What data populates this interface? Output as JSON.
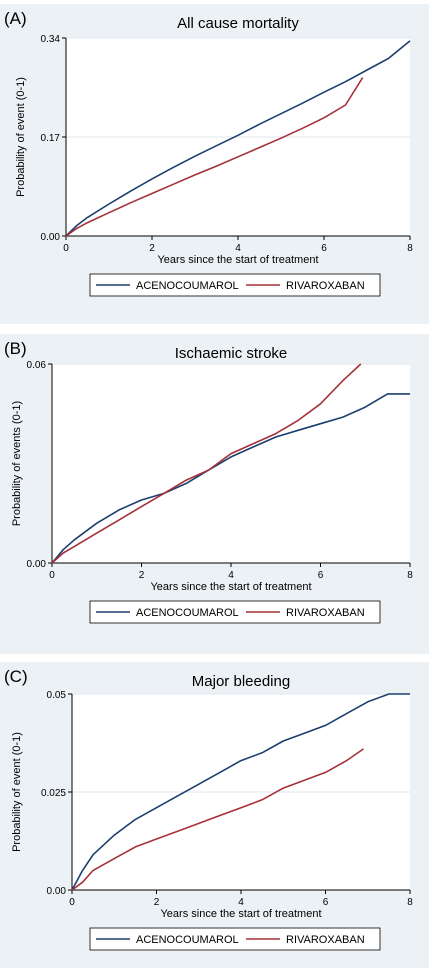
{
  "colors": {
    "panel_background": "#ecf1f5",
    "plot_background": "#ffffff",
    "grid": "#dfe7ed",
    "acenocoumarol": "#1b3f6f",
    "rivaroxaban": "#a6303a"
  },
  "chart_data": [
    {
      "type": "line",
      "panel_label": "(A)",
      "title": "All cause mortality",
      "xlabel": "Years since the start of treatment",
      "ylabel": "Probability of event (0-1)",
      "xlim": [
        0,
        8
      ],
      "ylim": [
        0,
        0.34
      ],
      "xticks": [
        "0",
        "2",
        "4",
        "6",
        "8"
      ],
      "yticks": [
        "0.00",
        "0.17",
        "0.34"
      ],
      "ytick_values": [
        0,
        0.17,
        0.34
      ],
      "grid": true,
      "legend_position": "bottom",
      "series": [
        {
          "name": "ACENOCOUMAROL",
          "color": "#1b3f6f",
          "x": [
            0,
            0.25,
            0.5,
            1,
            1.5,
            2,
            2.5,
            3,
            3.5,
            4,
            4.5,
            5,
            5.5,
            6,
            6.5,
            7,
            7.5,
            8
          ],
          "y": [
            0,
            0.018,
            0.032,
            0.055,
            0.077,
            0.098,
            0.118,
            0.137,
            0.155,
            0.173,
            0.192,
            0.21,
            0.228,
            0.247,
            0.265,
            0.285,
            0.305,
            0.335
          ]
        },
        {
          "name": "RIVAROXABAN",
          "color": "#a6303a",
          "x": [
            0,
            0.25,
            0.5,
            1,
            1.5,
            2,
            2.5,
            3,
            3.5,
            4,
            4.5,
            5,
            5.5,
            6,
            6.5,
            6.9
          ],
          "y": [
            0,
            0.013,
            0.023,
            0.04,
            0.057,
            0.073,
            0.089,
            0.105,
            0.12,
            0.136,
            0.152,
            0.168,
            0.185,
            0.203,
            0.225,
            0.272
          ]
        }
      ]
    },
    {
      "type": "line",
      "panel_label": "(B)",
      "title": "Ischaemic stroke",
      "xlabel": "Years since the start of treatment",
      "ylabel": "Probability of events (0-1)",
      "xlim": [
        0,
        8
      ],
      "ylim": [
        0,
        0.06
      ],
      "xticks": [
        "0",
        "2",
        "4",
        "6",
        "8"
      ],
      "yticks": [
        "0.00",
        "0.06"
      ],
      "ytick_values": [
        0,
        0.06
      ],
      "grid": true,
      "legend_position": "bottom",
      "series": [
        {
          "name": "ACENOCOUMAROL",
          "color": "#1b3f6f",
          "x": [
            0,
            0.25,
            0.5,
            1,
            1.5,
            2,
            2.5,
            3,
            3.5,
            4,
            4.5,
            5,
            5.5,
            6,
            6.5,
            7,
            7.5,
            8
          ],
          "y": [
            0,
            0.004,
            0.007,
            0.012,
            0.016,
            0.019,
            0.021,
            0.024,
            0.028,
            0.032,
            0.035,
            0.038,
            0.04,
            0.042,
            0.044,
            0.047,
            0.051,
            0.051
          ]
        },
        {
          "name": "RIVAROXABAN",
          "color": "#a6303a",
          "x": [
            0,
            0.25,
            0.5,
            1,
            1.5,
            2,
            2.5,
            3,
            3.5,
            4,
            4.5,
            5,
            5.5,
            6,
            6.5,
            6.9
          ],
          "y": [
            0,
            0.003,
            0.005,
            0.009,
            0.013,
            0.017,
            0.021,
            0.025,
            0.028,
            0.033,
            0.036,
            0.039,
            0.043,
            0.048,
            0.055,
            0.06
          ]
        }
      ]
    },
    {
      "type": "line",
      "panel_label": "(C)",
      "title": "Major bleeding",
      "xlabel": "Years since the start of treatment",
      "ylabel": "Probability of event (0-1)",
      "xlim": [
        0,
        8
      ],
      "ylim": [
        0,
        0.05
      ],
      "xticks": [
        "0",
        "2",
        "4",
        "6",
        "8"
      ],
      "yticks": [
        "0.00",
        "0.025",
        "0.05"
      ],
      "ytick_values": [
        0,
        0.025,
        0.05
      ],
      "grid": true,
      "legend_position": "bottom",
      "series": [
        {
          "name": "ACENOCOUMAROL",
          "color": "#1b3f6f",
          "x": [
            0,
            0.25,
            0.5,
            1,
            1.5,
            2,
            2.5,
            3,
            3.5,
            4,
            4.5,
            5,
            5.5,
            6,
            6.5,
            7,
            7.5,
            8
          ],
          "y": [
            0,
            0.005,
            0.009,
            0.014,
            0.018,
            0.021,
            0.024,
            0.027,
            0.03,
            0.033,
            0.035,
            0.038,
            0.04,
            0.042,
            0.045,
            0.048,
            0.05,
            0.05
          ]
        },
        {
          "name": "RIVAROXABAN",
          "color": "#a6303a",
          "x": [
            0,
            0.25,
            0.5,
            1,
            1.5,
            2,
            2.5,
            3,
            3.5,
            4,
            4.5,
            5,
            5.5,
            6,
            6.5,
            6.9
          ],
          "y": [
            0,
            0.002,
            0.005,
            0.008,
            0.011,
            0.013,
            0.015,
            0.017,
            0.019,
            0.021,
            0.023,
            0.026,
            0.028,
            0.03,
            0.033,
            0.036
          ]
        }
      ]
    }
  ]
}
